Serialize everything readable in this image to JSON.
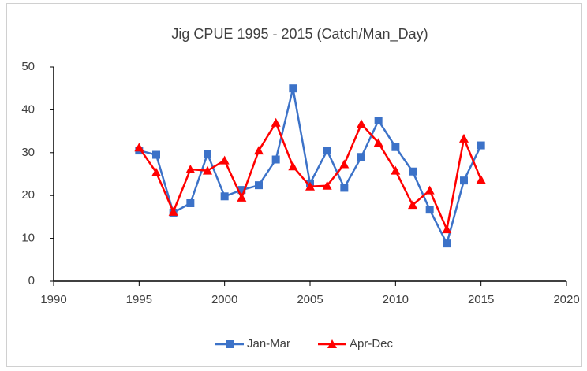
{
  "chart_data": {
    "type": "line",
    "title": "Jig  CPUE 1995 - 2015 (Catch/Man_Day)",
    "x": [
      1995,
      1996,
      1997,
      1998,
      1999,
      2000,
      2001,
      2002,
      2003,
      2004,
      2005,
      2006,
      2007,
      2008,
      2009,
      2010,
      2011,
      2012,
      2013,
      2014,
      2015
    ],
    "series": [
      {
        "name": "Jan-Mar",
        "color": "#3c72c8",
        "marker": "square",
        "values": [
          30.5,
          29.5,
          16,
          18.2,
          29.7,
          19.8,
          21.3,
          22.4,
          28.4,
          45,
          22.8,
          30.5,
          21.8,
          29,
          37.5,
          31.3,
          25.6,
          16.7,
          8.8,
          23.5,
          31.7
        ]
      },
      {
        "name": "Apr-Dec",
        "color": "#ff0000",
        "marker": "triangle",
        "values": [
          31.2,
          25.4,
          16.2,
          26.1,
          25.8,
          28.2,
          19.5,
          30.5,
          37,
          26.8,
          22.1,
          22.3,
          27.3,
          36.7,
          32.3,
          25.8,
          17.8,
          21.2,
          12.1,
          33.3,
          23.7
        ]
      }
    ],
    "xlim": [
      1990,
      2020
    ],
    "xticks": [
      1990,
      1995,
      2000,
      2005,
      2010,
      2015,
      2020
    ],
    "ylim": [
      0,
      50
    ],
    "yticks": [
      0,
      10,
      20,
      30,
      40,
      50
    ],
    "grid": false,
    "legend": "bottom"
  }
}
